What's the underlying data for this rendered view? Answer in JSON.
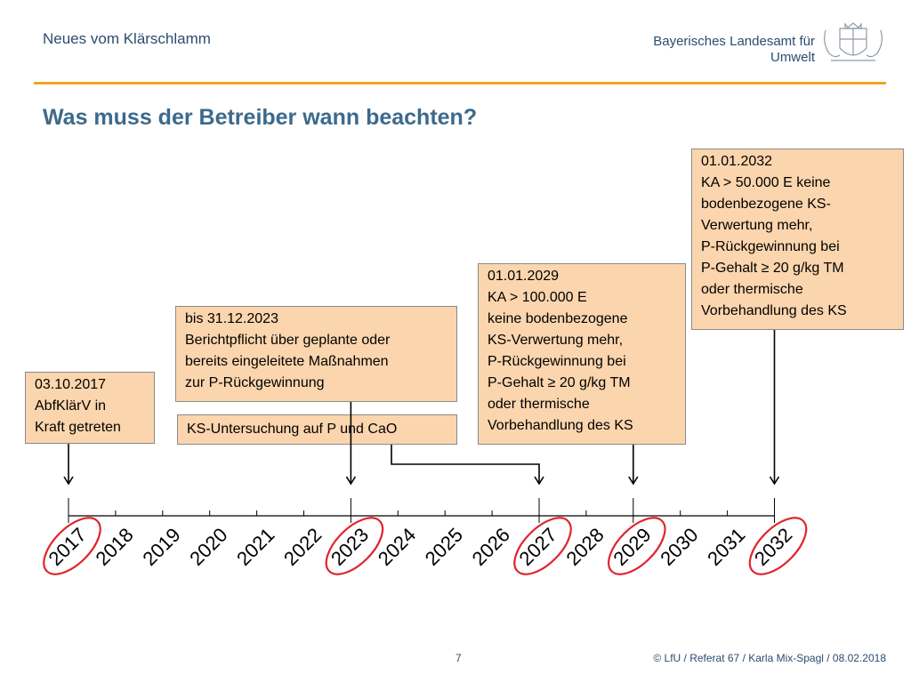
{
  "header": {
    "series_title": "Neues vom Klärschlamm",
    "org_line1": "Bayerisches Landesamt für",
    "org_line2": "Umwelt"
  },
  "title": "Was muss der Betreiber wann beachten?",
  "boxes": {
    "b2017": "03.10.2017\nAbfKlärV in\nKraft getreten",
    "b2023": "bis 31.12.2023\nBerichtpflicht über geplante oder\nbereits eingeleitete Maßnahmen\nzur P-Rückgewinnung",
    "bks": "KS-Untersuchung auf P und CaO",
    "b2029": "01.01.2029\nKA > 100.000 E\nkeine bodenbezogene\nKS-Verwertung mehr,\nP-Rückgewinnung bei\nP-Gehalt ≥ 20 g/kg TM\noder thermische\nVorbehandlung des KS",
    "b2032": "01.01.2032\nKA > 50.000 E keine\nbodenbezogene KS-\nVerwertung mehr,\nP-Rückgewinnung bei\nP-Gehalt ≥ 20 g/kg TM\noder thermische\nVorbehandlung des KS"
  },
  "timeline": {
    "years": [
      "2017",
      "2018",
      "2019",
      "2020",
      "2021",
      "2022",
      "2023",
      "2024",
      "2025",
      "2026",
      "2027",
      "2028",
      "2029",
      "2030",
      "2031",
      "2032"
    ],
    "highlighted": [
      "2017",
      "2023",
      "2027",
      "2029",
      "2032"
    ],
    "highlight_color": "#e0252c"
  },
  "footer": {
    "page": "7",
    "credit": "© LfU / Referat 67 / Karla Mix-Spagl / 08.02.2018"
  }
}
